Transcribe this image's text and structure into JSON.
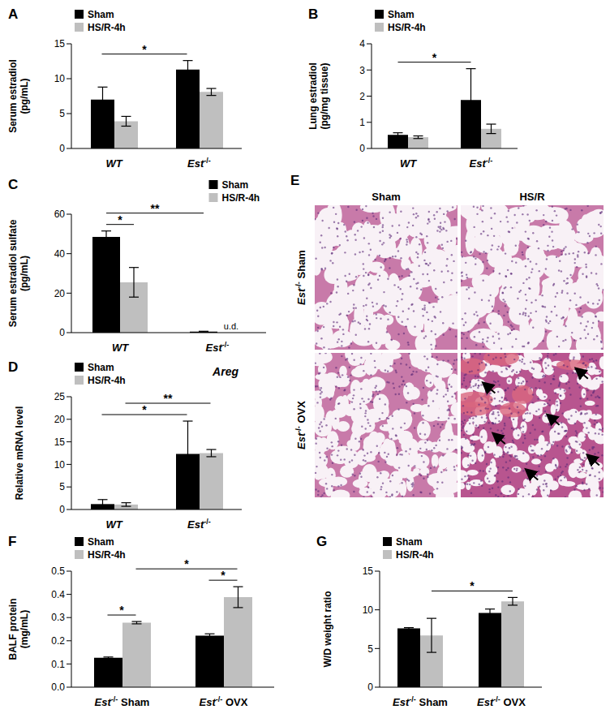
{
  "chart_data": [
    {
      "panel": "A",
      "type": "bar",
      "ylabel": "Serum estradiol (pg/mL)",
      "categories": [
        "WT",
        "Est-/-"
      ],
      "series": [
        {
          "name": "Sham",
          "color": "#000000",
          "values": [
            7.0,
            11.3
          ],
          "errors": [
            1.8,
            1.3
          ]
        },
        {
          "name": "HS/R-4h",
          "color": "#bfbfbf",
          "values": [
            3.9,
            8.1
          ],
          "errors": [
            0.7,
            0.5
          ]
        }
      ],
      "ylim": [
        0,
        15
      ],
      "yticks": [
        0,
        5,
        10,
        15
      ],
      "legend": "upper left",
      "annotations": [
        {
          "label": "*",
          "from": {
            "category": "WT",
            "series": "Sham"
          },
          "to": {
            "category": "Est-/-",
            "series": "Sham"
          }
        }
      ]
    },
    {
      "panel": "B",
      "type": "bar",
      "ylabel": "Lung estradiol (pg/mg tissue)",
      "categories": [
        "WT",
        "Est-/-"
      ],
      "series": [
        {
          "name": "Sham",
          "color": "#000000",
          "values": [
            0.52,
            1.85
          ],
          "errors": [
            0.08,
            1.2
          ]
        },
        {
          "name": "HS/R-4h",
          "color": "#bfbfbf",
          "values": [
            0.43,
            0.75
          ],
          "errors": [
            0.05,
            0.18
          ]
        }
      ],
      "ylim": [
        0,
        4
      ],
      "yticks": [
        0,
        1,
        2,
        3,
        4
      ],
      "legend": "upper left",
      "annotations": [
        {
          "label": "*",
          "from": {
            "category": "WT",
            "series": "Sham"
          },
          "to": {
            "category": "Est-/-",
            "series": "Sham"
          }
        }
      ]
    },
    {
      "panel": "C",
      "type": "bar",
      "ylabel": "Serum estradiol sulfate (pg/mL)",
      "categories": [
        "WT",
        "Est-/-"
      ],
      "series": [
        {
          "name": "Sham",
          "color": "#000000",
          "values": [
            48.5,
            0.5
          ],
          "errors": [
            3.0,
            0.2
          ]
        },
        {
          "name": "HS/R-4h",
          "color": "#bfbfbf",
          "values": [
            25.5,
            null
          ],
          "errors": [
            7.5,
            null
          ],
          "value_labels": [
            null,
            "u.d."
          ]
        }
      ],
      "ylim": [
        0,
        60
      ],
      "yticks": [
        0,
        20,
        40,
        60
      ],
      "legend": "upper right",
      "annotations": [
        {
          "label": "*",
          "from": {
            "category": "WT",
            "series": "Sham"
          },
          "to": {
            "category": "WT",
            "series": "HS/R-4h"
          }
        },
        {
          "label": "**",
          "from": {
            "category": "WT",
            "series": "Sham"
          },
          "to": {
            "category": "Est-/-",
            "series": "Sham"
          }
        }
      ]
    },
    {
      "panel": "D",
      "type": "bar",
      "title": "Areg",
      "ylabel": "Relative mRNA level",
      "categories": [
        "WT",
        "Est-/-"
      ],
      "series": [
        {
          "name": "Sham",
          "color": "#000000",
          "values": [
            1.2,
            12.3
          ],
          "errors": [
            1.0,
            7.3
          ]
        },
        {
          "name": "HS/R-4h",
          "color": "#bfbfbf",
          "values": [
            1.1,
            12.5
          ],
          "errors": [
            0.4,
            0.8
          ]
        }
      ],
      "ylim": [
        0,
        25
      ],
      "yticks": [
        0,
        5,
        10,
        15,
        20,
        25
      ],
      "legend": "upper left",
      "annotations": [
        {
          "label": "*",
          "from": {
            "category": "WT",
            "series": "Sham"
          },
          "to": {
            "category": "Est-/-",
            "series": "Sham"
          }
        },
        {
          "label": "**",
          "from": {
            "category": "WT",
            "series": "HS/R-4h"
          },
          "to": {
            "category": "Est-/-",
            "series": "HS/R-4h"
          }
        }
      ]
    },
    {
      "panel": "F",
      "type": "bar",
      "ylabel": "BALF protein (mg/mL)",
      "categories": [
        "Est-/- Sham",
        "Est-/- OVX"
      ],
      "series": [
        {
          "name": "Sham",
          "color": "#000000",
          "values": [
            0.127,
            0.222
          ],
          "errors": [
            0.003,
            0.008
          ]
        },
        {
          "name": "HS/R-4h",
          "color": "#bfbfbf",
          "values": [
            0.278,
            0.388
          ],
          "errors": [
            0.005,
            0.045
          ]
        }
      ],
      "ylim": [
        0,
        0.5
      ],
      "yticks": [
        {
          "value": 0,
          "label": "0.0"
        },
        0.1,
        0.2,
        0.3,
        0.4,
        0.5
      ],
      "legend": "upper left",
      "annotations": [
        {
          "label": "*",
          "from": {
            "category": "Est-/- Sham",
            "series": "Sham"
          },
          "to": {
            "category": "Est-/- Sham",
            "series": "HS/R-4h"
          }
        },
        {
          "label": "*",
          "from": {
            "category": "Est-/- OVX",
            "series": "Sham"
          },
          "to": {
            "category": "Est-/- OVX",
            "series": "HS/R-4h"
          }
        },
        {
          "label": "*",
          "from": {
            "category": "Est-/- Sham",
            "series": "HS/R-4h"
          },
          "to": {
            "category": "Est-/- OVX",
            "series": "HS/R-4h"
          }
        }
      ]
    },
    {
      "panel": "G",
      "type": "bar",
      "ylabel": "W/D weight ratio",
      "categories": [
        "Est-/- Sham",
        "Est-/- OVX"
      ],
      "series": [
        {
          "name": "Sham",
          "color": "#000000",
          "values": [
            7.6,
            9.6
          ],
          "errors": [
            0.1,
            0.5
          ]
        },
        {
          "name": "HS/R-4h",
          "color": "#bfbfbf",
          "values": [
            6.7,
            11.1
          ],
          "errors": [
            2.2,
            0.5
          ]
        }
      ],
      "ylim": [
        0,
        15
      ],
      "yticks": [
        0,
        5,
        10,
        15
      ],
      "legend": "upper left",
      "annotations": [
        {
          "label": "*",
          "from": {
            "category": "Est-/- Sham",
            "series": "HS/R-4h"
          },
          "to": {
            "category": "Est-/- OVX",
            "series": "HS/R-4h"
          }
        }
      ]
    }
  ],
  "image_panel": {
    "panel": "E",
    "columns": [
      "Sham",
      "HS/R"
    ],
    "rows": [
      "Est-/- Sham",
      "Est-/- OVX"
    ]
  }
}
